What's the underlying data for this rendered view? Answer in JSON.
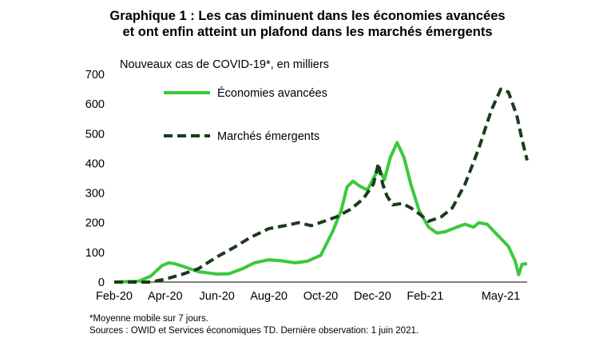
{
  "title_line1": "Graphique 1 : Les cas diminuent dans les économies avancées",
  "title_line2": "et ont enfin atteint un plafond dans les marchés émergents",
  "ylabel": "Nouveaux cas de COVID-19*, en milliers",
  "footnote1": "*Moyenne  mobile  sur 7 jours.",
  "footnote2": "Sources : OWID  et Services économiques  TD.  Dernière  observation:  1 juin  2021.",
  "colors": {
    "advanced": "#3cc83c",
    "emerging": "#1c3a1c"
  },
  "chart_data": {
    "type": "line",
    "title": "Graphique 1 : Les cas diminuent dans les économies avancées et ont enfin atteint un plafond dans les marchés émergents",
    "ylabel": "Nouveaux cas de COVID-19*, en milliers",
    "xlabel": "",
    "x_ticks": [
      "Feb-20",
      "Apr-20",
      "Jun-20",
      "Aug-20",
      "Oct-20",
      "Dec-20",
      "Feb-21",
      "May-21"
    ],
    "y_ticks": [
      0,
      100,
      200,
      300,
      400,
      500,
      600,
      700
    ],
    "ylim": [
      0,
      700
    ],
    "xlim": [
      "2020-02-01",
      "2021-06-01"
    ],
    "grid": false,
    "legend": "inside top-left",
    "series": [
      {
        "name": "Économies avancées",
        "style": "solid",
        "points": [
          [
            "2020-02-01",
            0
          ],
          [
            "2020-03-01",
            3
          ],
          [
            "2020-03-15",
            20
          ],
          [
            "2020-03-28",
            55
          ],
          [
            "2020-04-05",
            65
          ],
          [
            "2020-04-12",
            62
          ],
          [
            "2020-04-25",
            50
          ],
          [
            "2020-05-10",
            35
          ],
          [
            "2020-06-01",
            27
          ],
          [
            "2020-06-15",
            28
          ],
          [
            "2020-07-01",
            45
          ],
          [
            "2020-07-15",
            65
          ],
          [
            "2020-08-01",
            75
          ],
          [
            "2020-08-15",
            72
          ],
          [
            "2020-09-01",
            65
          ],
          [
            "2020-09-15",
            70
          ],
          [
            "2020-10-01",
            90
          ],
          [
            "2020-10-15",
            170
          ],
          [
            "2020-10-25",
            240
          ],
          [
            "2020-11-01",
            320
          ],
          [
            "2020-11-08",
            340
          ],
          [
            "2020-11-15",
            325
          ],
          [
            "2020-11-25",
            310
          ],
          [
            "2020-12-05",
            365
          ],
          [
            "2020-12-10",
            375
          ],
          [
            "2020-12-15",
            345
          ],
          [
            "2020-12-22",
            420
          ],
          [
            "2020-12-30",
            470
          ],
          [
            "2021-01-07",
            420
          ],
          [
            "2021-01-15",
            330
          ],
          [
            "2021-01-25",
            240
          ],
          [
            "2021-02-05",
            185
          ],
          [
            "2021-02-15",
            165
          ],
          [
            "2021-02-25",
            170
          ],
          [
            "2021-03-10",
            185
          ],
          [
            "2021-03-20",
            195
          ],
          [
            "2021-03-30",
            185
          ],
          [
            "2021-04-05",
            200
          ],
          [
            "2021-04-15",
            195
          ],
          [
            "2021-04-25",
            165
          ],
          [
            "2021-05-10",
            120
          ],
          [
            "2021-05-18",
            70
          ],
          [
            "2021-05-22",
            25
          ],
          [
            "2021-05-26",
            60
          ],
          [
            "2021-06-01",
            62
          ]
        ]
      },
      {
        "name": "Marchés émergents",
        "style": "dashed",
        "points": [
          [
            "2020-02-01",
            0
          ],
          [
            "2020-03-15",
            0
          ],
          [
            "2020-04-01",
            10
          ],
          [
            "2020-04-20",
            25
          ],
          [
            "2020-05-10",
            45
          ],
          [
            "2020-06-01",
            85
          ],
          [
            "2020-06-20",
            115
          ],
          [
            "2020-07-10",
            150
          ],
          [
            "2020-08-01",
            180
          ],
          [
            "2020-08-20",
            190
          ],
          [
            "2020-09-05",
            200
          ],
          [
            "2020-09-20",
            190
          ],
          [
            "2020-10-05",
            205
          ],
          [
            "2020-10-20",
            220
          ],
          [
            "2020-11-05",
            245
          ],
          [
            "2020-11-20",
            280
          ],
          [
            "2020-12-02",
            330
          ],
          [
            "2020-12-08",
            400
          ],
          [
            "2020-12-13",
            330
          ],
          [
            "2020-12-18",
            290
          ],
          [
            "2020-12-25",
            260
          ],
          [
            "2021-01-05",
            265
          ],
          [
            "2021-01-15",
            250
          ],
          [
            "2021-01-25",
            230
          ],
          [
            "2021-02-05",
            205
          ],
          [
            "2021-02-20",
            220
          ],
          [
            "2021-03-05",
            250
          ],
          [
            "2021-03-20",
            330
          ],
          [
            "2021-04-05",
            450
          ],
          [
            "2021-04-20",
            580
          ],
          [
            "2021-05-01",
            650
          ],
          [
            "2021-05-10",
            640
          ],
          [
            "2021-05-20",
            560
          ],
          [
            "2021-05-26",
            480
          ],
          [
            "2021-06-01",
            410
          ]
        ]
      }
    ]
  }
}
